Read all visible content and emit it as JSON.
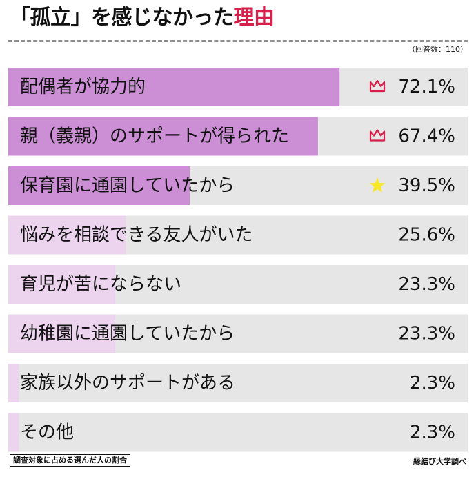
{
  "title": {
    "prefix": "「孤立」を感じなかった",
    "accent": "理由",
    "accent_color": "#d81f4b"
  },
  "respondents": "（回答数：110）",
  "footnote_left": "調査対象に占める選んだ人の割合",
  "footnote_right": "縁結び大学調べ",
  "colors": {
    "track": "#e6e6e6",
    "bar_top": "#cc8fd6",
    "bar_other": "#ecd4ef",
    "crown": "#d81f4b",
    "star": "#f7e62b"
  },
  "chart_data": {
    "type": "bar",
    "orientation": "horizontal",
    "categories": [
      "配偶者が協力的",
      "親（義親）のサポートが得られた",
      "保育園に通園していたから",
      "悩みを相談できる友人がいた",
      "育児が苦にならない",
      "幼稚園に通園していたから",
      "家族以外のサポートがある",
      "その他"
    ],
    "values": [
      72.1,
      67.4,
      39.5,
      25.6,
      23.3,
      23.3,
      2.3,
      2.3
    ],
    "value_labels": [
      "72.1%",
      "67.4%",
      "39.5%",
      "25.6%",
      "23.3%",
      "23.3%",
      "2.3%",
      "2.3%"
    ],
    "rank_icons": [
      "crown-icon",
      "crown-icon",
      "star-icon",
      "",
      "",
      "",
      "",
      ""
    ],
    "xlim": [
      0,
      100
    ],
    "title": "「孤立」を感じなかった理由",
    "xlabel": "",
    "ylabel": "",
    "grid": false
  }
}
